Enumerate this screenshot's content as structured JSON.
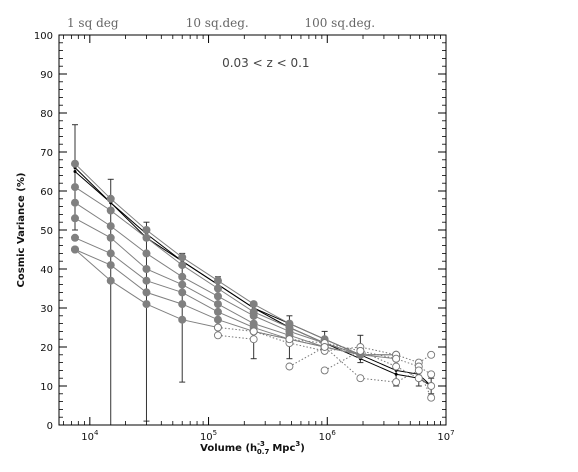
{
  "chart_data": {
    "type": "line",
    "title": "",
    "xlabel": "Volume (h",
    "xlabel_sub": "0.7",
    "xlabel_sup": "-3",
    "xlabel_units": "Mpc",
    "xlabel_units_sup": "3",
    "xlabel_close": ")",
    "ylabel": "Cosmic Variance (%)",
    "annotation": "0.03 < z < 0.1",
    "x_scale": "log",
    "xlim": [
      5500,
      10000000
    ],
    "ylim": [
      0,
      100
    ],
    "y_ticks": [
      0,
      10,
      20,
      30,
      40,
      50,
      60,
      70,
      80,
      90,
      100
    ],
    "x_tick_labels": [
      {
        "value": 10000,
        "base": "10",
        "exp": "4"
      },
      {
        "value": 100000,
        "base": "10",
        "exp": "5"
      },
      {
        "value": 1000000,
        "base": "10",
        "exp": "6"
      },
      {
        "value": 10000000,
        "base": "10",
        "exp": "7"
      }
    ],
    "top_labels": [
      {
        "value": 7500,
        "label": "1 sq deg"
      },
      {
        "value": 75000,
        "label": "10 sq.deg."
      },
      {
        "value": 750000,
        "label": "100 sq.deg."
      }
    ],
    "grid": false,
    "legend": "none",
    "colors": {
      "filled": "#808080",
      "open": "#777777",
      "black": "#000000",
      "errorbar": "#333333"
    },
    "error_bars": [
      {
        "x": 7500,
        "y": 65,
        "lo": 50,
        "hi": 77
      },
      {
        "x": 15000,
        "y": 57,
        "lo": 0,
        "hi": 63
      },
      {
        "x": 30000,
        "y": 49,
        "lo": 1,
        "hi": 52
      },
      {
        "x": 60000,
        "y": 42,
        "lo": 11,
        "hi": 44
      },
      {
        "x": 120000,
        "y": 36,
        "lo": 27,
        "hi": 38
      },
      {
        "x": 240000,
        "y": 30,
        "lo": 17,
        "hi": 31
      },
      {
        "x": 480000,
        "y": 26,
        "lo": 17,
        "hi": 28
      },
      {
        "x": 950000,
        "y": 22,
        "lo": 19,
        "hi": 24
      },
      {
        "x": 1900000,
        "y": 18,
        "lo": 16,
        "hi": 23
      },
      {
        "x": 3800000,
        "y": 14,
        "lo": 10,
        "hi": 18
      },
      {
        "x": 5900000,
        "y": 12,
        "lo": 10,
        "hi": 16
      },
      {
        "x": 7500000,
        "y": 10,
        "lo": 8,
        "hi": 12
      }
    ],
    "series": [
      {
        "style": "black",
        "x": [
          7500,
          15000,
          30000,
          60000,
          120000,
          240000,
          480000,
          950000,
          1900000,
          3800000,
          5900000,
          7500000
        ],
        "values": [
          66,
          57,
          49,
          42,
          36,
          30,
          26,
          22,
          18,
          14,
          13,
          10
        ]
      },
      {
        "style": "black",
        "x": [
          7500,
          15000,
          30000,
          60000,
          120000,
          240000,
          480000,
          950000,
          1900000,
          3800000,
          5900000,
          7500000
        ],
        "values": [
          65,
          57,
          48,
          42,
          36,
          30,
          25,
          21,
          17,
          13,
          12,
          10
        ]
      },
      {
        "style": "filled",
        "x": [
          7500,
          15000,
          30000,
          60000,
          120000,
          240000,
          480000,
          950000,
          1900000,
          3800000
        ],
        "values": [
          67,
          58,
          50,
          43,
          37,
          31,
          26,
          22,
          18,
          18
        ]
      },
      {
        "style": "filled",
        "x": [
          7500,
          15000,
          30000,
          60000,
          120000,
          240000,
          480000,
          950000,
          1900000,
          3800000
        ],
        "values": [
          61,
          55,
          48,
          41,
          35,
          29,
          25,
          21,
          18,
          18
        ]
      },
      {
        "style": "filled",
        "x": [
          7500,
          15000,
          30000,
          60000,
          120000,
          240000,
          480000,
          950000,
          1900000,
          3800000
        ],
        "values": [
          57,
          51,
          44,
          38,
          33,
          28,
          24,
          21,
          18,
          17
        ]
      },
      {
        "style": "filled",
        "x": [
          7500,
          15000,
          30000,
          60000,
          120000,
          240000,
          480000,
          950000,
          1900000
        ],
        "values": [
          53,
          48,
          40,
          36,
          31,
          26,
          23,
          20,
          18
        ]
      },
      {
        "style": "filled",
        "x": [
          7500,
          15000,
          30000,
          60000,
          120000,
          240000,
          480000,
          950000,
          1900000
        ],
        "values": [
          48,
          44,
          37,
          34,
          29,
          25,
          22,
          20,
          18
        ]
      },
      {
        "style": "filled",
        "x": [
          7500,
          15000,
          30000,
          60000,
          120000,
          240000,
          480000,
          950000,
          1900000
        ],
        "values": [
          45,
          41,
          34,
          31,
          27,
          24,
          22,
          20,
          18
        ]
      },
      {
        "style": "filled",
        "x": [
          7500,
          15000,
          30000,
          60000,
          120000
        ],
        "values": [
          45,
          37,
          31,
          27,
          25
        ]
      },
      {
        "style": "open-dotted",
        "x": [
          120000,
          240000,
          480000,
          950000,
          1900000,
          3800000,
          5900000,
          7500000
        ],
        "values": [
          25,
          24,
          21,
          19,
          20,
          18,
          16,
          18
        ]
      },
      {
        "style": "open-dotted",
        "x": [
          240000,
          480000,
          950000,
          1900000,
          3800000,
          5900000,
          7500000
        ],
        "values": [
          24,
          22,
          21,
          19,
          17,
          15,
          13
        ]
      },
      {
        "style": "open-dotted",
        "x": [
          480000,
          950000,
          1900000,
          3800000,
          5900000,
          7500000
        ],
        "values": [
          15,
          20,
          12,
          11,
          14,
          7
        ]
      },
      {
        "style": "open-dotted",
        "x": [
          950000,
          1900000,
          3800000,
          5900000,
          7500000
        ],
        "values": [
          14,
          19,
          15,
          12,
          10
        ]
      },
      {
        "style": "open-dotted",
        "x": [
          120000,
          240000
        ],
        "values": [
          23,
          22
        ]
      }
    ]
  }
}
